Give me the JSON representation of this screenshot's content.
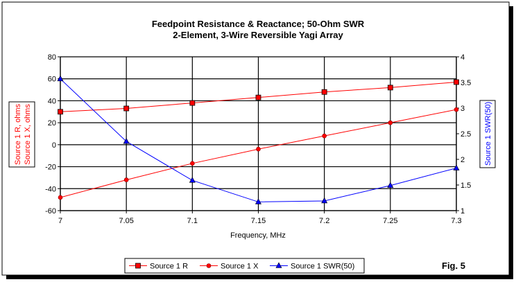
{
  "chart_data": {
    "type": "line",
    "title": [
      "Feedpoint Resistance & Reactance; 50-Ohm SWR",
      "2-Element, 3-Wire Reversible Yagi Array"
    ],
    "xlabel": "Frequency, MHz",
    "ylabel_left": [
      "Source 1 R, ohms",
      "Source 1 X, ohms"
    ],
    "ylabel_right": "Source 1 SWR(50)",
    "x": [
      7,
      7.05,
      7.1,
      7.15,
      7.2,
      7.25,
      7.3
    ],
    "x_tick_labels": [
      "7",
      "7.05",
      "7.1",
      "7.15",
      "7.2",
      "7.25",
      "7.3"
    ],
    "xlim": [
      7,
      7.3
    ],
    "ylim_left": [
      -60,
      80
    ],
    "y_left_ticks": [
      "80",
      "60",
      "40",
      "20",
      "0",
      "-20",
      "-40",
      "-60"
    ],
    "ylim_right": [
      1,
      4
    ],
    "y_right_ticks": [
      "4",
      "3.5",
      "3",
      "2.5",
      "2",
      "1.5",
      "1"
    ],
    "grid": true,
    "legend_placement": "bottom",
    "series": [
      {
        "name": "Source 1 R",
        "axis": "left",
        "color": "#ff0000",
        "marker": "square",
        "values": [
          30,
          33,
          38,
          43,
          48,
          52,
          57
        ]
      },
      {
        "name": "Source 1 X",
        "axis": "left",
        "color": "#ff0000",
        "marker": "diamond",
        "values": [
          -48,
          -32,
          -17,
          -4,
          8,
          20,
          32
        ]
      },
      {
        "name": "Source 1 SWR(50)",
        "axis": "right",
        "color": "#0000ff",
        "marker": "triangle",
        "values": [
          3.57,
          2.35,
          1.59,
          1.17,
          1.19,
          1.49,
          1.83
        ]
      }
    ],
    "annotation": "Fig. 5"
  }
}
